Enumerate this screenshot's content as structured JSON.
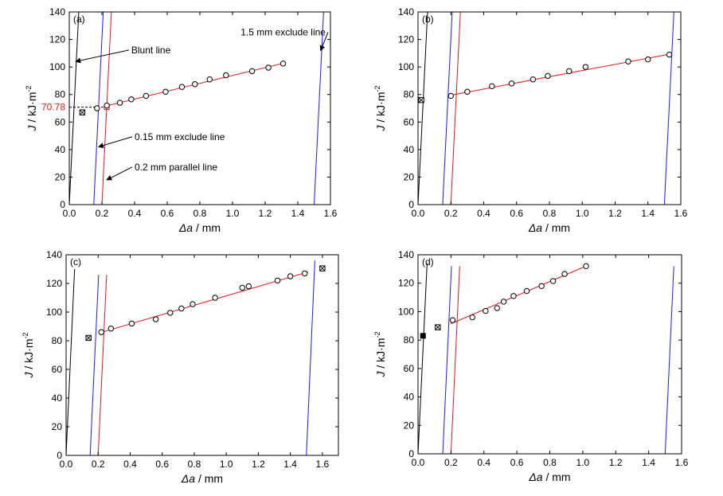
{
  "figure": {
    "colors": {
      "blunt": "#000000",
      "exclude": "#1a1aff",
      "parallel": "#e01818",
      "fit": "#e01818",
      "jic_label": "#e01818",
      "axis": "#000000"
    },
    "xlabel_prefix": "Δa",
    "xlabel_unit": " / mm",
    "ylabel_prefix": "J",
    "ylabel_unit": " / kJ·m",
    "ylabel_exp": "-2"
  },
  "chart_data": [
    {
      "type": "scatter",
      "panel": "(a)",
      "xlim": [
        0,
        1.6
      ],
      "ylim": [
        0,
        140
      ],
      "xticks": [
        "0.0",
        "0.2",
        "0.4",
        "0.6",
        "0.8",
        "1.0",
        "1.2",
        "1.4",
        "1.6"
      ],
      "yticks": [
        "0",
        "20",
        "40",
        "60",
        "80",
        "100",
        "120",
        "140"
      ],
      "points": [
        [
          0.17,
          70
        ],
        [
          0.23,
          72
        ],
        [
          0.31,
          74
        ],
        [
          0.38,
          76.5
        ],
        [
          0.47,
          79
        ],
        [
          0.59,
          82
        ],
        [
          0.69,
          85.5
        ],
        [
          0.77,
          87.5
        ],
        [
          0.86,
          91
        ],
        [
          0.96,
          94
        ],
        [
          1.12,
          97
        ],
        [
          1.22,
          99.5
        ],
        [
          1.31,
          102.5
        ]
      ],
      "excluded_points": [
        [
          0.08,
          67
        ]
      ],
      "fit_line": [
        [
          0.22,
          71.5
        ],
        [
          1.32,
          103
        ]
      ],
      "blunt_line": [
        [
          0.0,
          0
        ],
        [
          0.058,
          140
        ]
      ],
      "exclude_lines": [
        [
          [
            0.15,
            0
          ],
          [
            0.208,
            140
          ]
        ],
        [
          [
            1.5,
            0
          ],
          [
            1.558,
            140
          ]
        ]
      ],
      "parallel_line": [
        [
          0.2,
          0
        ],
        [
          0.258,
          140
        ]
      ],
      "jic_marker": {
        "x": 0.23,
        "y": 70.78,
        "label": "70.78"
      },
      "annotations": [
        {
          "text": "Blunt line",
          "tx": 0.38,
          "ty": 110,
          "ax": 0.04,
          "ay": 104
        },
        {
          "text": "1.5 mm exclude line",
          "tx": 1.05,
          "ty": 123,
          "ax": 1.54,
          "ay": 112
        },
        {
          "text": "0.15 mm exclude line",
          "tx": 0.4,
          "ty": 47,
          "ax": 0.18,
          "ay": 42
        },
        {
          "text": "0.2 mm parallel line",
          "tx": 0.4,
          "ty": 25,
          "ax": 0.23,
          "ay": 18
        }
      ]
    },
    {
      "type": "scatter",
      "panel": "(b)",
      "xlim": [
        0,
        1.6
      ],
      "ylim": [
        0,
        140
      ],
      "xticks": [
        "0.0",
        "0.2",
        "0.4",
        "0.6",
        "0.8",
        "1.0",
        "1.2",
        "1.4",
        "1.6"
      ],
      "yticks": [
        "0",
        "20",
        "40",
        "60",
        "80",
        "100",
        "120",
        "140"
      ],
      "points": [
        [
          0.2,
          79
        ],
        [
          0.3,
          82
        ],
        [
          0.45,
          86
        ],
        [
          0.57,
          88
        ],
        [
          0.7,
          91
        ],
        [
          0.79,
          93.5
        ],
        [
          0.92,
          97
        ],
        [
          1.02,
          100
        ],
        [
          1.28,
          104
        ],
        [
          1.4,
          105.5
        ],
        [
          1.53,
          109
        ]
      ],
      "excluded_points": [
        [
          0.02,
          76
        ]
      ],
      "fit_line": [
        [
          0.2,
          79.5
        ],
        [
          1.54,
          109.5
        ]
      ],
      "blunt_line": [
        [
          0.0,
          0
        ],
        [
          0.058,
          140
        ]
      ],
      "exclude_lines": [
        [
          [
            0.15,
            0
          ],
          [
            0.208,
            140
          ]
        ],
        [
          [
            1.5,
            0
          ],
          [
            1.558,
            140
          ]
        ]
      ],
      "parallel_line": [
        [
          0.2,
          0
        ],
        [
          0.258,
          140
        ]
      ]
    },
    {
      "type": "scatter",
      "panel": "(c)",
      "xlim": [
        0,
        1.7
      ],
      "ylim": [
        0,
        140
      ],
      "xticks": [
        "0.0",
        "0.2",
        "0.4",
        "0.6",
        "0.8",
        "1.0",
        "1.2",
        "1.4",
        "1.6"
      ],
      "yticks": [
        "0",
        "20",
        "40",
        "60",
        "80",
        "100",
        "120",
        "140"
      ],
      "points": [
        [
          0.22,
          86
        ],
        [
          0.28,
          88.5
        ],
        [
          0.41,
          92
        ],
        [
          0.56,
          95
        ],
        [
          0.65,
          99.5
        ],
        [
          0.72,
          102.5
        ],
        [
          0.79,
          105.5
        ],
        [
          0.93,
          110
        ],
        [
          1.1,
          117
        ],
        [
          1.14,
          118
        ],
        [
          1.32,
          122
        ],
        [
          1.4,
          125
        ],
        [
          1.49,
          127
        ]
      ],
      "excluded_points": [
        [
          0.14,
          82
        ],
        [
          1.6,
          130.5
        ]
      ],
      "fit_line": [
        [
          0.21,
          85.5
        ],
        [
          1.51,
          128
        ]
      ],
      "blunt_line": [
        [
          0.0,
          0
        ],
        [
          0.053,
          130
        ]
      ],
      "exclude_lines": [
        [
          [
            0.15,
            0
          ],
          [
            0.203,
            126
          ]
        ],
        [
          [
            1.5,
            0
          ],
          [
            1.553,
            136
          ]
        ]
      ],
      "parallel_line": [
        [
          0.2,
          0
        ],
        [
          0.253,
          126
        ]
      ]
    },
    {
      "type": "scatter",
      "panel": "(d)",
      "xlim": [
        0,
        1.6
      ],
      "ylim": [
        0,
        140
      ],
      "xticks": [
        "0.0",
        "0.2",
        "0.4",
        "0.6",
        "0.8",
        "1.0",
        "1.2",
        "1.4",
        "1.6"
      ],
      "yticks": [
        "0",
        "20",
        "40",
        "60",
        "80",
        "100",
        "120",
        "140"
      ],
      "points": [
        [
          0.21,
          94
        ],
        [
          0.33,
          96
        ],
        [
          0.41,
          100.5
        ],
        [
          0.48,
          102.5
        ],
        [
          0.52,
          107
        ],
        [
          0.58,
          111
        ],
        [
          0.66,
          114.5
        ],
        [
          0.75,
          118
        ],
        [
          0.82,
          121.5
        ],
        [
          0.89,
          126.5
        ],
        [
          1.02,
          132
        ]
      ],
      "excluded_points": [
        [
          0.12,
          89
        ]
      ],
      "filled_points": [
        [
          0.03,
          83
        ]
      ],
      "fit_line": [
        [
          0.2,
          91.5
        ],
        [
          1.03,
          132.5
        ]
      ],
      "blunt_line": [
        [
          0.0,
          0
        ],
        [
          0.055,
          134
        ]
      ],
      "exclude_lines": [
        [
          [
            0.15,
            0
          ],
          [
            0.203,
            132
          ]
        ],
        [
          [
            1.5,
            0
          ],
          [
            1.553,
            132
          ]
        ]
      ],
      "parallel_line": [
        [
          0.2,
          0
        ],
        [
          0.253,
          132
        ]
      ]
    }
  ]
}
